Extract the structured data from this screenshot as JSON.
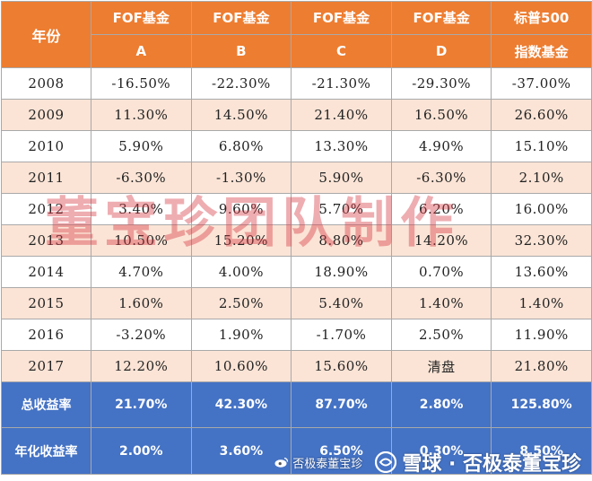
{
  "header": {
    "year": "年份",
    "cols": [
      {
        "line1": "FOF基金",
        "line2": "A"
      },
      {
        "line1": "FOF基金",
        "line2": "B"
      },
      {
        "line1": "FOF基金",
        "line2": "C"
      },
      {
        "line1": "FOF基金",
        "line2": "D"
      },
      {
        "line1": "标普500",
        "line2": "指数基金"
      }
    ]
  },
  "rows": [
    {
      "year": "2008",
      "a": "-16.50%",
      "b": "-22.30%",
      "c": "-21.30%",
      "d": "-29.30%",
      "sp": "-37.00%"
    },
    {
      "year": "2009",
      "a": "11.30%",
      "b": "14.50%",
      "c": "21.40%",
      "d": "16.50%",
      "sp": "26.60%"
    },
    {
      "year": "2010",
      "a": "5.90%",
      "b": "6.80%",
      "c": "13.30%",
      "d": "4.90%",
      "sp": "15.10%"
    },
    {
      "year": "2011",
      "a": "-6.30%",
      "b": "-1.30%",
      "c": "5.90%",
      "d": "-6.30%",
      "sp": "2.10%"
    },
    {
      "year": "2012",
      "a": "3.40%",
      "b": "9.60%",
      "c": "5.70%",
      "d": "6.20%",
      "sp": "16.00%"
    },
    {
      "year": "2013",
      "a": "10.50%",
      "b": "15.20%",
      "c": "8.80%",
      "d": "14.20%",
      "sp": "32.30%"
    },
    {
      "year": "2014",
      "a": "4.70%",
      "b": "4.00%",
      "c": "18.90%",
      "d": "0.70%",
      "sp": "13.60%"
    },
    {
      "year": "2015",
      "a": "1.60%",
      "b": "2.50%",
      "c": "5.40%",
      "d": "1.40%",
      "sp": "1.40%"
    },
    {
      "year": "2016",
      "a": "-3.20%",
      "b": "1.90%",
      "c": "-1.70%",
      "d": "2.50%",
      "sp": "11.90%"
    },
    {
      "year": "2017",
      "a": "12.20%",
      "b": "10.60%",
      "c": "15.60%",
      "d": "清盘",
      "sp": "21.80%"
    }
  ],
  "summary": [
    {
      "label": "总收益率",
      "a": "21.70%",
      "b": "42.30%",
      "c": "87.70%",
      "d": "2.80%",
      "sp": "125.80%"
    },
    {
      "label": "年化收益率",
      "a": "2.00%",
      "b": "3.60%",
      "c": "6.50%",
      "d": "0.30%",
      "sp": "8.50%"
    }
  ],
  "watermark": "董宝珍团队制作",
  "footer": {
    "weibo": "否极泰董宝珍",
    "xueqiu": "雪球 · 否极泰董宝珍"
  },
  "colors": {
    "header_bg": "#ed7d31",
    "even_row_bg": "#fbe4d6",
    "summary_bg": "#4472c4",
    "watermark": "#d63c46"
  }
}
